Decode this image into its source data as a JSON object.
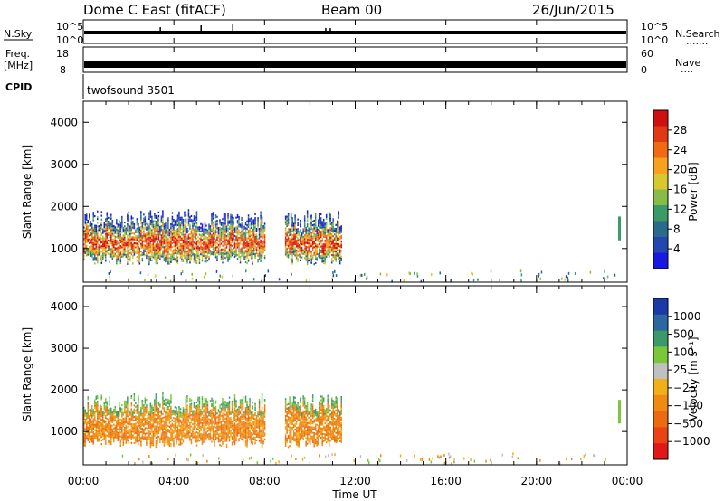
{
  "header": {
    "title": "Dome C East (fitACF)",
    "beam": "Beam 00",
    "date": "26/Jun/2015"
  },
  "top_panels": {
    "nsky_label": "N.Sky",
    "nsearch_label": "N.Search",
    "nsearch_dots": ".......",
    "freq_label_1": "Freq.",
    "freq_label_2": "[MHz]",
    "nave_label": "Nave",
    "nave_dots": "....",
    "cpid_label": "CPID",
    "cpid_value": "twofsound 3501",
    "nsky_left_ticks": [
      "10^5",
      "10^0"
    ],
    "nsky_right_ticks": [
      "10^5",
      "10^0"
    ],
    "freq_left_ticks": [
      "18",
      "8"
    ],
    "freq_right_ticks": [
      "60",
      "0"
    ]
  },
  "chart_data": [
    {
      "type": "heatmap",
      "title": "",
      "xlabel": "Time UT",
      "ylabel": "Slant Range [km]",
      "xlim": [
        0,
        24
      ],
      "ylim": [
        200,
        4500
      ],
      "x_ticks": [
        "00:00",
        "04:00",
        "08:00",
        "12:00",
        "16:00",
        "20:00",
        "00:00"
      ],
      "y_ticks": [
        1000,
        2000,
        3000,
        4000
      ],
      "colorbar": {
        "label": "Power [dB]",
        "ticks": [
          "28",
          "24",
          "20",
          "16",
          "12",
          "8",
          "4"
        ],
        "colors": [
          "#d01010",
          "#e03a12",
          "#f06a14",
          "#f8a020",
          "#d8c830",
          "#88bc4a",
          "#3a9a68",
          "#2a6a8a",
          "#2446b0",
          "#1818e0"
        ]
      },
      "echo_blocks_hours": [
        [
          0,
          8.0
        ],
        [
          8.9,
          11.4
        ]
      ]
    },
    {
      "type": "heatmap",
      "title": "",
      "xlabel": "Time UT",
      "ylabel": "Slant Range [km]",
      "xlim": [
        0,
        24
      ],
      "ylim": [
        200,
        4500
      ],
      "x_ticks": [
        "00:00",
        "04:00",
        "08:00",
        "12:00",
        "16:00",
        "20:00",
        "00:00"
      ],
      "y_ticks": [
        1000,
        2000,
        3000,
        4000
      ],
      "colorbar": {
        "label": "Velocity [m s⁻¹]",
        "ticks": [
          "1000",
          "500",
          "100",
          "25",
          "−25",
          "−100",
          "−500",
          "−1000"
        ],
        "colors": [
          "#1a3aa8",
          "#2e66a0",
          "#3c9a6a",
          "#7ac83a",
          "#c0c0c0",
          "#f0b018",
          "#f08a10",
          "#ec6a10",
          "#e84414",
          "#e01818"
        ]
      },
      "echo_blocks_hours": [
        [
          0,
          8.0
        ],
        [
          8.9,
          11.4
        ]
      ]
    }
  ]
}
